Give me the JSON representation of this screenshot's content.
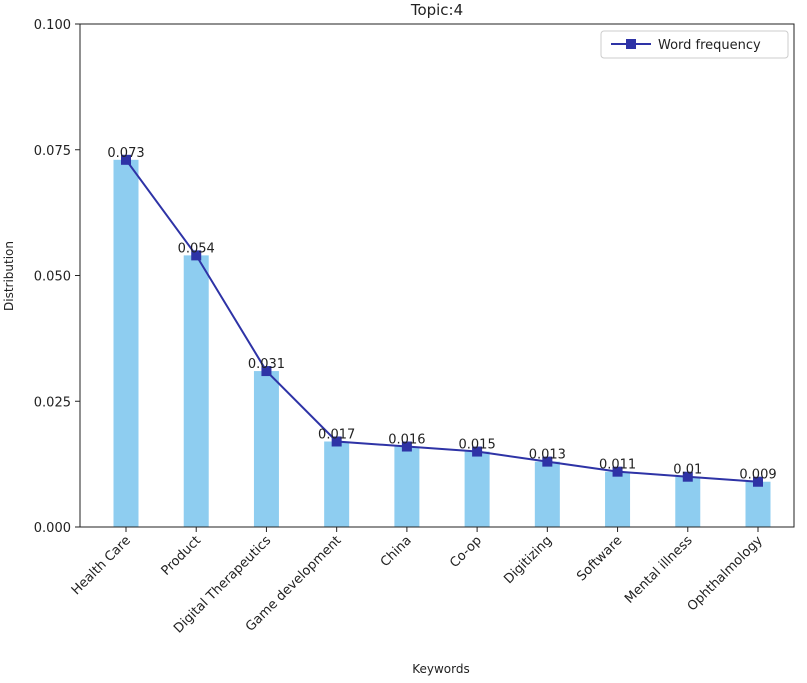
{
  "chart_data": {
    "type": "bar",
    "title": "Topic:4",
    "xlabel": "Keywords",
    "ylabel": "Distribution",
    "ylim": [
      0,
      0.1
    ],
    "yticks": [
      "0.000",
      "0.025",
      "0.050",
      "0.075",
      "0.100"
    ],
    "categories": [
      "Health Care",
      "Product",
      "Digital Therapeutics",
      "Game development",
      "China",
      "Co-op",
      "Digitizing",
      "Software",
      "Mental illness",
      "Ophthalmology"
    ],
    "values": [
      0.073,
      0.054,
      0.031,
      0.017,
      0.016,
      0.015,
      0.013,
      0.011,
      0.01,
      0.009
    ],
    "data_labels": [
      "0.073",
      "0.054",
      "0.031",
      "0.017",
      "0.016",
      "0.015",
      "0.013",
      "0.011",
      "0.01",
      "0.009"
    ],
    "line_series": {
      "name": "Word frequency",
      "values": [
        0.073,
        0.054,
        0.031,
        0.017,
        0.016,
        0.015,
        0.013,
        0.011,
        0.01,
        0.009
      ]
    },
    "legend": "top-right",
    "grid": false,
    "colors": {
      "bar": "#8ecdf0",
      "line": "#2e33a6",
      "axis": "#222222"
    }
  }
}
